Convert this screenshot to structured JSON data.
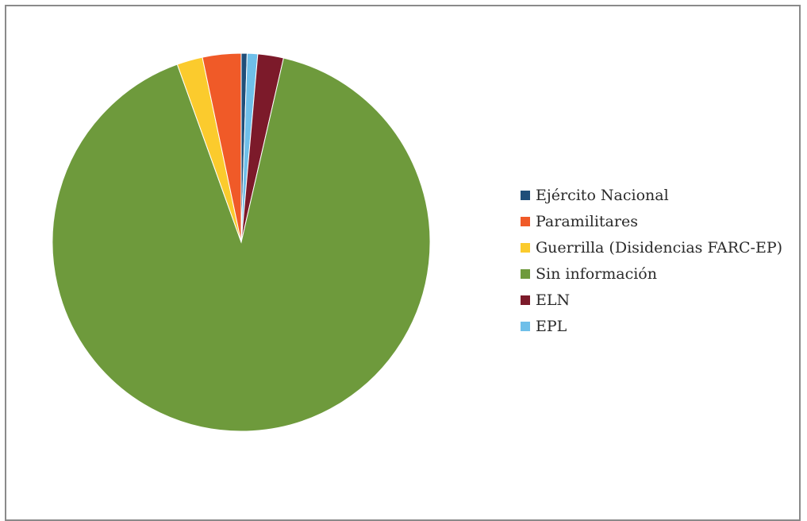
{
  "chart_data": {
    "type": "pie",
    "title": "",
    "legend_position": "right",
    "series": [
      {
        "name": "Ejército Nacional",
        "value": 0.5,
        "color": "#1f4e79"
      },
      {
        "name": "Paramilitares",
        "value": 3.3,
        "color": "#f05a28"
      },
      {
        "name": "Guerrilla (Disidencias FARC-EP)",
        "value": 2.2,
        "color": "#fbcb2d"
      },
      {
        "name": "Sin información",
        "value": 90.9,
        "color": "#6e9a3c"
      },
      {
        "name": "ELN",
        "value": 2.2,
        "color": "#7c1a2a"
      },
      {
        "name": "EPL",
        "value": 0.9,
        "color": "#6fbfe9"
      }
    ],
    "slice_order": [
      "Ejército Nacional",
      "EPL",
      "ELN",
      "Sin información",
      "Guerrilla (Disidencias FARC-EP)",
      "Paramilitares"
    ]
  }
}
